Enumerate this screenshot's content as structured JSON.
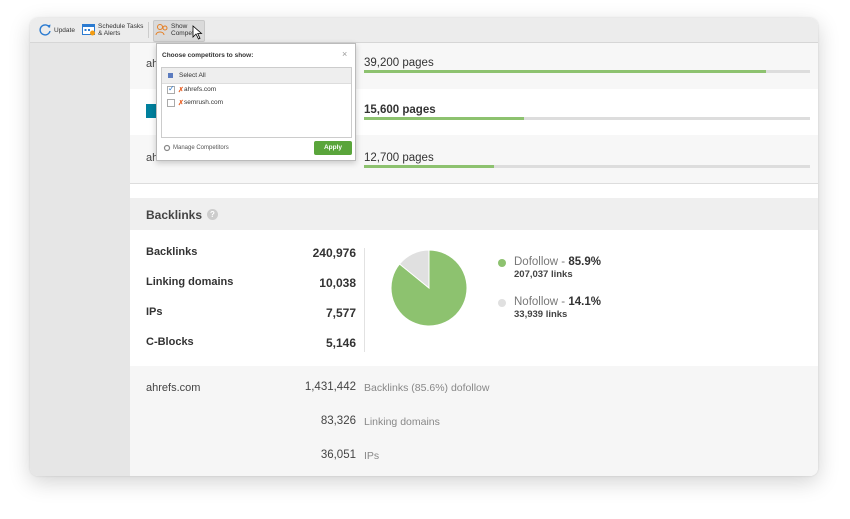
{
  "toolbar": {
    "update": "Update",
    "schedule": [
      "Schedule Tasks",
      "& Alerts"
    ],
    "competitors": [
      "Show",
      "Competitors"
    ]
  },
  "pages": {
    "xlim": [
      0,
      43500
    ],
    "rows": [
      {
        "name": "ahrefs.com",
        "pages": 39200,
        "label": "39,200 pages"
      },
      {
        "pages": 15600,
        "label": "15,600 pages"
      },
      {
        "name": "ahrefs.com",
        "pages": 12700,
        "label": "12,700 pages"
      }
    ]
  },
  "dropdown": {
    "title": "Choose competitors to show:",
    "close": "×",
    "select_all": "Select All",
    "items": [
      {
        "name": "ahrefs.com",
        "checked": true
      },
      {
        "name": "semrush.com",
        "checked": false
      }
    ],
    "manage": "Manage Competitors",
    "apply": "Apply"
  },
  "backlinks": {
    "title": "Backlinks",
    "help": "?",
    "stats": [
      [
        "Backlinks",
        "240,976"
      ],
      [
        "Linking domains",
        "10,038"
      ],
      [
        "IPs",
        "7,577"
      ],
      [
        "C-Blocks",
        "5,146"
      ]
    ]
  },
  "chart_data": {
    "type": "pie",
    "categories": [
      "Dofollow",
      "Nofollow"
    ],
    "values": [
      85.9,
      14.1
    ],
    "value_labels": [
      "85.9%",
      "14.1%"
    ],
    "colors": [
      "#8dc26f",
      "#e0e0e0"
    ],
    "separator": " - ",
    "sub_labels": [
      "207,037 links",
      "33,939 links"
    ]
  },
  "own": {
    "name": "ahrefs.com",
    "rows": [
      [
        "1,431,442",
        "Backlinks (85.6%) dofollow"
      ],
      [
        "83,326",
        "Linking domains"
      ],
      [
        "36,051",
        "IPs"
      ]
    ]
  }
}
